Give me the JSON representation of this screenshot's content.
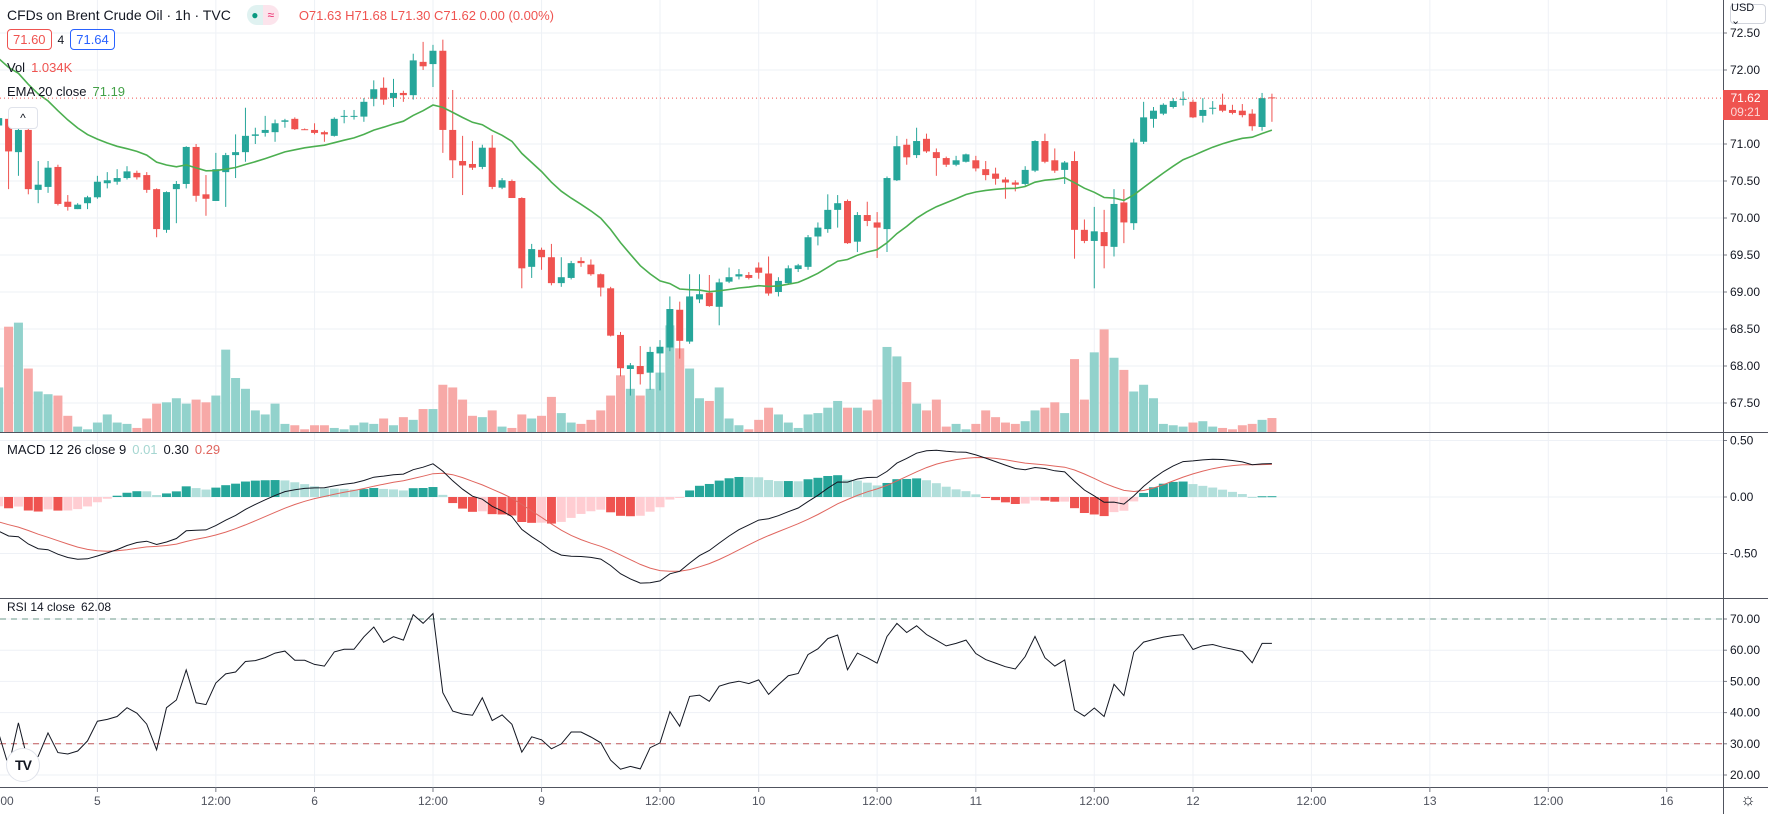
{
  "header": {
    "title": "CFDs on Brent Crude Oil · 1h · TVC",
    "status_icons": [
      "market-open-dot-icon",
      "delayed-data-icon"
    ],
    "delayed_glyph": "≈",
    "open": "O71.63",
    "high": "H71.68",
    "low": "L71.30",
    "close": "C71.62",
    "change": "0.00 (0.00%)",
    "sell_price": "71.60",
    "spread": "4",
    "buy_price": "71.64",
    "vol_label": "Vol",
    "vol_value": "1.034K",
    "ema_label": "EMA 20 close",
    "ema_value": "71.19",
    "collapse_glyph": "^"
  },
  "macd_legend": {
    "label": "MACD 12 26 close 9",
    "hist": "0.01",
    "macd": "0.30",
    "signal": "0.29"
  },
  "rsi_legend": {
    "label": "RSI 14 close",
    "value": "62.08"
  },
  "price_axis": {
    "currency": "USD ⌄",
    "ticks": [
      "72.50",
      "72.00",
      "71.00",
      "70.50",
      "70.00",
      "69.50",
      "69.00",
      "68.50",
      "68.00",
      "67.50"
    ],
    "last_price": "71.62",
    "countdown": "09:21"
  },
  "macd_axis": {
    "ticks": [
      "0.50",
      "0.00",
      "-0.50"
    ]
  },
  "rsi_axis": {
    "ticks": [
      "70.00",
      "60.00",
      "50.00",
      "40.00",
      "30.00",
      "20.00"
    ]
  },
  "time_axis": {
    "ticks": [
      {
        "label": "12:00",
        "bar": 0
      },
      {
        "label": "5",
        "bar": 10
      },
      {
        "label": "12:00",
        "bar": 22
      },
      {
        "label": "6",
        "bar": 32
      },
      {
        "label": "12:00",
        "bar": 44
      },
      {
        "label": "9",
        "bar": 55
      },
      {
        "label": "12:00",
        "bar": 67
      },
      {
        "label": "10",
        "bar": 77
      },
      {
        "label": "12:00",
        "bar": 89
      },
      {
        "label": "11",
        "bar": 99
      },
      {
        "label": "12:00",
        "bar": 111
      },
      {
        "label": "12",
        "bar": 121
      },
      {
        "label": "12:00",
        "bar": 133
      },
      {
        "label": "13",
        "bar": 145
      },
      {
        "label": "12:00",
        "bar": 157
      },
      {
        "label": "16",
        "bar": 169
      }
    ]
  },
  "colors": {
    "up": "#26a69a",
    "down": "#ef5350",
    "up_vol": "#92d2cc",
    "down_vol": "#f7a9a7",
    "ema": "#4caf50",
    "macd": "#131722",
    "signal": "#e0665f",
    "hist_up_strong": "#26a69a",
    "hist_up_weak": "#b2dfdb",
    "hist_dn_strong": "#ef5350",
    "hist_dn_weak": "#ffcdd2",
    "rsi": "#131722",
    "accent": "#2962ff"
  },
  "chart_data": {
    "type": "candlestick",
    "title": "CFDs on Brent Crude Oil · 1h · TVC",
    "interval": "1h",
    "ylim": [
      67.3,
      72.6
    ],
    "columns": [
      "open",
      "high",
      "low",
      "close",
      "volume_k"
    ],
    "candles": [
      [
        71.25,
        71.4,
        71.2,
        71.35,
        3.3
      ],
      [
        71.34,
        71.4,
        70.39,
        70.9,
        7.8
      ],
      [
        70.89,
        71.23,
        70.57,
        71.19,
        8.1
      ],
      [
        71.19,
        71.22,
        70.32,
        70.39,
        4.7
      ],
      [
        70.38,
        70.77,
        70.2,
        70.45,
        3.0
      ],
      [
        70.42,
        70.77,
        70.34,
        70.68,
        2.8
      ],
      [
        70.69,
        70.72,
        70.17,
        70.19,
        2.7
      ],
      [
        70.22,
        70.31,
        70.1,
        70.15,
        1.2
      ],
      [
        70.12,
        70.2,
        70.12,
        70.18,
        0.4
      ],
      [
        70.2,
        70.3,
        70.12,
        70.28,
        0.2
      ],
      [
        70.28,
        70.57,
        70.26,
        70.49,
        0.7
      ],
      [
        70.47,
        70.62,
        70.4,
        70.51,
        1.3
      ],
      [
        70.49,
        70.66,
        70.45,
        70.54,
        0.7
      ],
      [
        70.54,
        70.7,
        70.52,
        70.63,
        0.6
      ],
      [
        70.61,
        70.64,
        70.52,
        70.55,
        0.3
      ],
      [
        70.58,
        70.62,
        70.34,
        70.38,
        1.0
      ],
      [
        70.39,
        70.4,
        69.74,
        69.85,
        2.1
      ],
      [
        69.84,
        70.36,
        69.8,
        70.35,
        2.2
      ],
      [
        70.39,
        70.5,
        69.93,
        70.46,
        2.5
      ],
      [
        70.46,
        70.97,
        70.4,
        70.96,
        2.1
      ],
      [
        70.96,
        71.0,
        70.22,
        70.3,
        2.4
      ],
      [
        70.32,
        70.58,
        70.03,
        70.26,
        2.2
      ],
      [
        70.23,
        70.88,
        70.23,
        70.66,
        2.7
      ],
      [
        70.62,
        70.88,
        70.15,
        70.85,
        6.1
      ],
      [
        70.85,
        71.13,
        70.54,
        70.89,
        4.0
      ],
      [
        70.89,
        71.49,
        70.76,
        71.11,
        3.2
      ],
      [
        71.11,
        71.22,
        71.0,
        71.13,
        1.6
      ],
      [
        71.15,
        71.38,
        71.1,
        71.19,
        1.3
      ],
      [
        71.16,
        71.33,
        71.03,
        71.28,
        2.1
      ],
      [
        71.3,
        71.34,
        71.22,
        71.32,
        0.6
      ],
      [
        71.34,
        71.36,
        71.19,
        71.2,
        0.5
      ],
      [
        71.2,
        71.21,
        71.19,
        71.2,
        0.2
      ],
      [
        71.19,
        71.28,
        71.13,
        71.15,
        0.5
      ],
      [
        71.16,
        71.18,
        71.03,
        71.13,
        0.5
      ],
      [
        71.11,
        71.36,
        71.1,
        71.34,
        0.3
      ],
      [
        71.37,
        71.46,
        71.28,
        71.38,
        0.2
      ],
      [
        71.37,
        71.46,
        71.33,
        71.38,
        0.5
      ],
      [
        71.37,
        71.62,
        71.3,
        71.57,
        0.7
      ],
      [
        71.61,
        71.86,
        71.51,
        71.74,
        0.6
      ],
      [
        71.76,
        71.9,
        71.53,
        71.6,
        1.0
      ],
      [
        71.62,
        71.88,
        71.5,
        71.69,
        0.5
      ],
      [
        71.69,
        71.72,
        71.57,
        71.66,
        1.1
      ],
      [
        71.66,
        72.22,
        71.6,
        72.13,
        0.9
      ],
      [
        72.11,
        72.38,
        72.0,
        72.05,
        1.7
      ],
      [
        72.08,
        72.34,
        71.77,
        72.26,
        1.7
      ],
      [
        72.26,
        72.41,
        70.88,
        71.19,
        3.5
      ],
      [
        71.19,
        71.73,
        70.54,
        70.78,
        3.3
      ],
      [
        70.77,
        71.11,
        70.31,
        70.71,
        2.4
      ],
      [
        70.73,
        71.04,
        70.65,
        70.68,
        1.2
      ],
      [
        70.69,
        70.99,
        70.66,
        70.95,
        1.1
      ],
      [
        70.95,
        71.12,
        70.39,
        70.42,
        1.6
      ],
      [
        70.41,
        70.54,
        70.39,
        70.51,
        0.4
      ],
      [
        70.5,
        70.52,
        70.27,
        70.27,
        0.3
      ],
      [
        70.27,
        70.28,
        69.05,
        69.32,
        1.3
      ],
      [
        69.34,
        69.65,
        69.19,
        69.58,
        1.0
      ],
      [
        69.57,
        69.6,
        69.3,
        69.47,
        1.2
      ],
      [
        69.47,
        69.65,
        69.09,
        69.12,
        2.6
      ],
      [
        69.12,
        69.47,
        69.07,
        69.2,
        1.4
      ],
      [
        69.19,
        69.42,
        69.17,
        69.39,
        0.7
      ],
      [
        69.42,
        69.47,
        69.34,
        69.39,
        0.6
      ],
      [
        69.37,
        69.44,
        69.22,
        69.24,
        0.9
      ],
      [
        69.24,
        69.25,
        68.94,
        69.06,
        1.6
      ],
      [
        69.05,
        69.07,
        68.4,
        68.41,
        2.7
      ],
      [
        68.42,
        68.46,
        67.86,
        67.97,
        4.2
      ],
      [
        67.96,
        68.04,
        67.6,
        68.01,
        3.2
      ],
      [
        68.0,
        68.27,
        67.75,
        67.89,
        2.7
      ],
      [
        67.91,
        68.26,
        67.68,
        68.19,
        3.2
      ],
      [
        68.17,
        68.35,
        67.67,
        68.26,
        4.4
      ],
      [
        68.25,
        68.94,
        68.2,
        68.77,
        7.9
      ],
      [
        68.76,
        68.87,
        68.1,
        68.34,
        6.2
      ],
      [
        68.33,
        69.24,
        68.3,
        68.94,
        4.7
      ],
      [
        68.9,
        69.24,
        68.85,
        68.97,
        2.5
      ],
      [
        68.99,
        69.23,
        68.8,
        68.81,
        2.3
      ],
      [
        68.8,
        69.18,
        68.55,
        69.13,
        3.3
      ],
      [
        69.14,
        69.33,
        69.12,
        69.2,
        1.0
      ],
      [
        69.21,
        69.31,
        69.17,
        69.24,
        0.5
      ],
      [
        69.23,
        69.27,
        69.17,
        69.19,
        0.2
      ],
      [
        69.33,
        69.4,
        69.18,
        69.26,
        0.9
      ],
      [
        69.25,
        69.48,
        68.95,
        68.98,
        1.8
      ],
      [
        69.0,
        69.2,
        68.94,
        69.15,
        1.3
      ],
      [
        69.12,
        69.36,
        69.1,
        69.32,
        0.7
      ],
      [
        69.31,
        69.38,
        69.27,
        69.36,
        0.3
      ],
      [
        69.34,
        69.77,
        69.3,
        69.74,
        1.3
      ],
      [
        69.75,
        69.94,
        69.63,
        69.87,
        1.4
      ],
      [
        69.85,
        70.32,
        69.8,
        70.11,
        1.8
      ],
      [
        70.11,
        70.31,
        69.87,
        70.2,
        2.3
      ],
      [
        70.23,
        70.25,
        69.65,
        69.66,
        1.8
      ],
      [
        69.68,
        70.08,
        69.54,
        70.04,
        1.8
      ],
      [
        70.04,
        70.22,
        69.89,
        69.96,
        1.6
      ],
      [
        69.94,
        70.08,
        69.46,
        69.87,
        2.4
      ],
      [
        69.85,
        70.56,
        69.54,
        70.54,
        6.3
      ],
      [
        70.51,
        71.11,
        70.5,
        70.97,
        5.6
      ],
      [
        70.99,
        71.07,
        70.72,
        70.82,
        3.7
      ],
      [
        70.85,
        71.22,
        70.81,
        71.04,
        2.1
      ],
      [
        71.07,
        71.14,
        70.88,
        70.9,
        1.6
      ],
      [
        70.89,
        70.94,
        70.57,
        70.81,
        2.4
      ],
      [
        70.81,
        70.83,
        70.69,
        70.72,
        0.4
      ],
      [
        70.72,
        70.84,
        70.7,
        70.78,
        0.6
      ],
      [
        70.76,
        70.87,
        70.75,
        70.86,
        0.2
      ],
      [
        70.78,
        70.84,
        70.63,
        70.67,
        0.6
      ],
      [
        70.66,
        70.77,
        70.51,
        70.58,
        1.6
      ],
      [
        70.6,
        70.68,
        70.45,
        70.53,
        1.1
      ],
      [
        70.52,
        70.55,
        70.26,
        70.48,
        0.7
      ],
      [
        70.48,
        70.51,
        70.36,
        70.45,
        0.6
      ],
      [
        70.46,
        70.7,
        70.44,
        70.65,
        0.8
      ],
      [
        70.64,
        71.05,
        70.62,
        71.04,
        1.6
      ],
      [
        71.04,
        71.14,
        70.74,
        70.76,
        1.8
      ],
      [
        70.78,
        70.94,
        70.61,
        70.64,
        2.2
      ],
      [
        70.65,
        70.77,
        70.46,
        70.75,
        1.4
      ],
      [
        70.77,
        70.9,
        69.45,
        69.84,
        5.4
      ],
      [
        69.84,
        69.98,
        69.66,
        69.69,
        2.4
      ],
      [
        69.69,
        70.15,
        69.05,
        69.82,
        5.9
      ],
      [
        69.81,
        70.11,
        69.32,
        69.62,
        7.6
      ],
      [
        69.61,
        70.39,
        69.48,
        70.19,
        5.5
      ],
      [
        70.21,
        70.39,
        69.66,
        69.94,
        4.6
      ],
      [
        69.93,
        71.07,
        69.84,
        71.02,
        3.0
      ],
      [
        71.03,
        71.57,
        71.0,
        71.36,
        3.5
      ],
      [
        71.34,
        71.5,
        71.22,
        71.45,
        2.5
      ],
      [
        71.41,
        71.55,
        71.39,
        71.53,
        0.6
      ],
      [
        71.5,
        71.62,
        71.48,
        71.58,
        0.5
      ],
      [
        71.6,
        71.71,
        71.52,
        71.61,
        0.4
      ],
      [
        71.57,
        71.6,
        71.35,
        71.36,
        0.7
      ],
      [
        71.38,
        71.62,
        71.29,
        71.46,
        0.8
      ],
      [
        71.48,
        71.58,
        71.4,
        71.49,
        0.4
      ],
      [
        71.53,
        71.68,
        71.43,
        71.45,
        0.3
      ],
      [
        71.46,
        71.53,
        71.4,
        71.42,
        0.2
      ],
      [
        71.45,
        71.54,
        71.36,
        71.39,
        0.5
      ],
      [
        71.41,
        71.47,
        71.18,
        71.24,
        0.6
      ],
      [
        71.23,
        71.69,
        71.18,
        71.62,
        0.9
      ],
      [
        71.63,
        71.68,
        71.3,
        71.62,
        1.034
      ]
    ],
    "indicator_seeds": {
      "ema20": 72.24,
      "ema12": 71.78,
      "ema26": 72.07,
      "signal9": -0.2,
      "rsi_avg_gain": 0.025,
      "rsi_avg_loss": 0.05
    },
    "macd_ylim": [
      -0.85,
      0.55
    ],
    "rsi_ylim": [
      14,
      76
    ],
    "rsi_bands": [
      70,
      30
    ]
  }
}
